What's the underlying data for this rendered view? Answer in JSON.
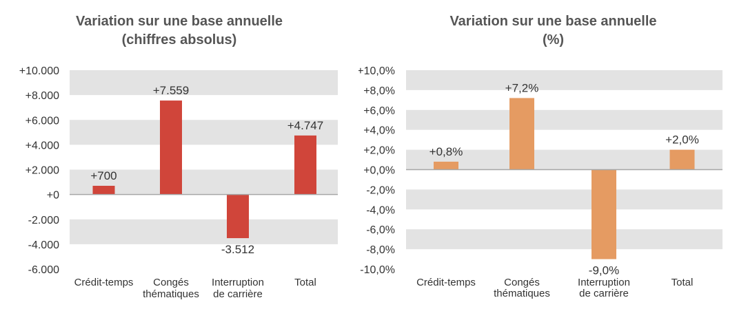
{
  "chart_data": [
    {
      "type": "bar",
      "title": "Variation sur une base annuelle",
      "subtitle": "(chiffres absolus)",
      "categories": [
        [
          "Crédit-temps"
        ],
        [
          "Congés",
          "thématiques"
        ],
        [
          "Interruption",
          "de carrière"
        ],
        [
          "Total"
        ]
      ],
      "values": [
        700,
        7559,
        -3512,
        4747
      ],
      "data_labels": [
        "+700",
        "+7.559",
        "-3.512",
        "+4.747"
      ],
      "ylim": [
        -6000,
        10000
      ],
      "yticks": [
        10000,
        8000,
        6000,
        4000,
        2000,
        0,
        -2000,
        -4000,
        -6000
      ],
      "ytick_labels": [
        "+10.000",
        "+8.000",
        "+6.000",
        "+4.000",
        "+2.000",
        "+0",
        "-2.000",
        "-4.000",
        "-6.000"
      ],
      "bar_color": "#d0453a",
      "band_color": "#e3e3e3",
      "grid": true,
      "legend": "none"
    },
    {
      "type": "bar",
      "title": "Variation sur une base annuelle",
      "subtitle": "(%)",
      "categories": [
        [
          "Crédit-temps"
        ],
        [
          "Congés",
          "thématiques"
        ],
        [
          "Interruption",
          "de carrière"
        ],
        [
          "Total"
        ]
      ],
      "values": [
        0.8,
        7.2,
        -9.0,
        2.0
      ],
      "data_labels": [
        "+0,8%",
        "+7,2%",
        "-9,0%",
        "+2,0%"
      ],
      "ylim": [
        -10,
        10
      ],
      "yticks": [
        10,
        8,
        6,
        4,
        2,
        0,
        -2,
        -4,
        -6,
        -8,
        -10
      ],
      "ytick_labels": [
        "+10,0%",
        "+8,0%",
        "+6,0%",
        "+4,0%",
        "+2,0%",
        "+0,0%",
        "-2,0%",
        "-4,0%",
        "-6,0%",
        "-8,0%",
        "-10,0%"
      ],
      "bar_color": "#e59b62",
      "band_color": "#e3e3e3",
      "grid": true,
      "legend": "none"
    }
  ]
}
